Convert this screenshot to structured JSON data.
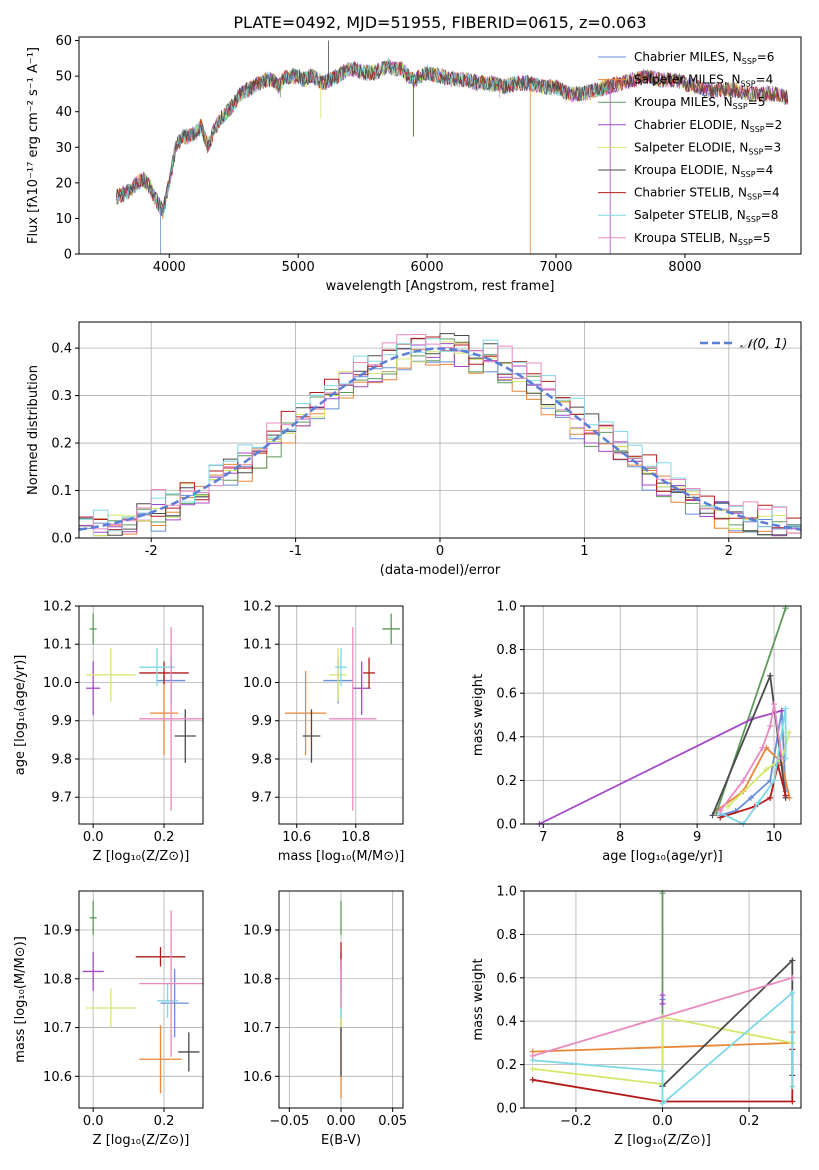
{
  "colors": {
    "palette": [
      "#6a8fd8",
      "#e8873a",
      "#5e9a5e",
      "#a64ac9",
      "#d4e86a",
      "#4a4a4a",
      "#b31b1b",
      "#7fd8e6",
      "#e98ac0"
    ],
    "normal_curve": "#5b7fd6",
    "grid": "#b0b0b0"
  },
  "chart_data": [
    {
      "id": "spectrum",
      "type": "line",
      "title": "PLATE=0492, MJD=51955, FIBERID=0615, z=0.063",
      "xlabel": "wavelength [Angstrom, rest frame]",
      "ylabel": "Flux [fλ10⁻¹⁷ erg cm⁻² s⁻¹ A⁻¹]",
      "xlim": [
        3300,
        8900
      ],
      "ylim": [
        0,
        61
      ],
      "xticks": [
        4000,
        5000,
        6000,
        7000,
        8000
      ],
      "yticks": [
        0,
        10,
        20,
        30,
        40,
        50,
        60
      ],
      "grid": false,
      "legend_position": "top-right",
      "continuum": [
        [
          3590,
          16
        ],
        [
          3650,
          17
        ],
        [
          3700,
          18
        ],
        [
          3750,
          20
        ],
        [
          3800,
          21
        ],
        [
          3850,
          19
        ],
        [
          3900,
          15
        ],
        [
          3950,
          12
        ],
        [
          4000,
          20
        ],
        [
          4050,
          30
        ],
        [
          4100,
          33
        ],
        [
          4150,
          33
        ],
        [
          4200,
          34
        ],
        [
          4250,
          36
        ],
        [
          4300,
          30
        ],
        [
          4350,
          35
        ],
        [
          4400,
          38
        ],
        [
          4450,
          40
        ],
        [
          4500,
          42
        ],
        [
          4550,
          45
        ],
        [
          4600,
          46
        ],
        [
          4650,
          47
        ],
        [
          4700,
          48
        ],
        [
          4750,
          49
        ],
        [
          4800,
          49
        ],
        [
          4850,
          47
        ],
        [
          4900,
          50
        ],
        [
          4950,
          50
        ],
        [
          5000,
          50
        ],
        [
          5050,
          49
        ],
        [
          5100,
          50
        ],
        [
          5150,
          49
        ],
        [
          5200,
          48
        ],
        [
          5250,
          49
        ],
        [
          5300,
          50
        ],
        [
          5350,
          51
        ],
        [
          5400,
          52
        ],
        [
          5450,
          52
        ],
        [
          5500,
          51
        ],
        [
          5550,
          51
        ],
        [
          5600,
          51
        ],
        [
          5650,
          52
        ],
        [
          5700,
          53
        ],
        [
          5750,
          52
        ],
        [
          5800,
          52
        ],
        [
          5850,
          50
        ],
        [
          5900,
          49
        ],
        [
          5950,
          50
        ],
        [
          6000,
          51
        ],
        [
          6100,
          50
        ],
        [
          6200,
          49
        ],
        [
          6300,
          49
        ],
        [
          6400,
          48
        ],
        [
          6500,
          48
        ],
        [
          6600,
          47
        ],
        [
          6700,
          48
        ],
        [
          6800,
          48
        ],
        [
          6900,
          47
        ],
        [
          7000,
          47
        ],
        [
          7100,
          45
        ],
        [
          7200,
          45
        ],
        [
          7300,
          46
        ],
        [
          7400,
          47
        ],
        [
          7500,
          48
        ],
        [
          7600,
          49
        ],
        [
          7700,
          50
        ],
        [
          7800,
          49
        ],
        [
          7900,
          49
        ],
        [
          8000,
          48
        ],
        [
          8100,
          47
        ],
        [
          8200,
          46
        ],
        [
          8300,
          46
        ],
        [
          8400,
          46
        ],
        [
          8500,
          45
        ],
        [
          8600,
          45
        ],
        [
          8700,
          45
        ],
        [
          8800,
          44
        ]
      ],
      "series": [
        {
          "name": "Chabrier MILES, N",
          "sub": "SSP",
          "suffix": "=6"
        },
        {
          "name": "Salpeter MILES, N",
          "sub": "SSP",
          "suffix": "=4"
        },
        {
          "name": "Kroupa MILES, N",
          "sub": "SSP",
          "suffix": "=5"
        },
        {
          "name": "Chabrier ELODIE, N",
          "sub": "SSP",
          "suffix": "=2"
        },
        {
          "name": "Salpeter ELODIE, N",
          "sub": "SSP",
          "suffix": "=3"
        },
        {
          "name": "Kroupa ELODIE, N",
          "sub": "SSP",
          "suffix": "=4"
        },
        {
          "name": "Chabrier STELIB, N",
          "sub": "SSP",
          "suffix": "=4"
        },
        {
          "name": "Salpeter STELIB, N",
          "sub": "SSP",
          "suffix": "=8"
        },
        {
          "name": "Kroupa STELIB, N",
          "sub": "SSP",
          "suffix": "=5"
        }
      ]
    },
    {
      "id": "residuals",
      "type": "bar",
      "xlabel": "(data-model)/error",
      "ylabel": "Normed distribution",
      "xlim": [
        -2.5,
        2.5
      ],
      "ylim": [
        0,
        0.455
      ],
      "xticks": [
        -2,
        -1,
        0,
        1,
        2
      ],
      "yticks": [
        0.0,
        0.1,
        0.2,
        0.3,
        0.4
      ],
      "ytick_labels": [
        "0.0",
        "0.1",
        "0.2",
        "0.3",
        "0.4"
      ],
      "grid": true,
      "legend_position": "top-right",
      "legend": "𝒩(0, 1)",
      "bin_width": 0.1,
      "bins_start": -2.5
    },
    {
      "id": "age_vs_Z",
      "type": "scatter",
      "xlabel": "Z [log₁₀(Z/Z⊙)]",
      "ylabel": "age  [log₁₀(age/yr)]",
      "xlim": [
        -0.04,
        0.31
      ],
      "ylim": [
        9.63,
        10.2
      ],
      "xticks": [
        0.0,
        0.2
      ],
      "xtick_labels": [
        "0.0",
        "0.2"
      ],
      "yticks": [
        9.7,
        9.8,
        9.9,
        10.0,
        10.1,
        10.2
      ],
      "ytick_labels": [
        "9.7",
        "9.8",
        "9.9",
        "10.0",
        "10.1",
        "10.2"
      ],
      "grid": true,
      "points": [
        {
          "x": 0.22,
          "y": 10.005,
          "ex": 0.04,
          "ey": 0.06
        },
        {
          "x": 0.2,
          "y": 9.92,
          "ex": 0.04,
          "ey": 0.11
        },
        {
          "x": 0.0,
          "y": 10.14,
          "ex": 0.01,
          "ey": 0.04
        },
        {
          "x": 0.0,
          "y": 9.985,
          "ex": 0.02,
          "ey": 0.07
        },
        {
          "x": 0.05,
          "y": 10.02,
          "ex": 0.07,
          "ey": 0.07
        },
        {
          "x": 0.26,
          "y": 9.86,
          "ex": 0.03,
          "ey": 0.07
        },
        {
          "x": 0.2,
          "y": 10.025,
          "ex": 0.07,
          "ey": 0.03
        },
        {
          "x": 0.18,
          "y": 10.04,
          "ex": 0.05,
          "ey": 0.05
        },
        {
          "x": 0.22,
          "y": 9.905,
          "ex": 0.09,
          "ey": 0.24
        }
      ]
    },
    {
      "id": "age_vs_mass",
      "type": "scatter",
      "xlabel": "mass [log₁₀(M/M⊙)]",
      "ylabel": "",
      "xlim": [
        10.54,
        10.96
      ],
      "ylim": [
        9.63,
        10.2
      ],
      "xticks": [
        10.6,
        10.8
      ],
      "xtick_labels": [
        "10.6",
        "10.8"
      ],
      "yticks": [
        9.7,
        9.8,
        9.9,
        10.0,
        10.1,
        10.2
      ],
      "ytick_labels": [
        "9.7",
        "9.8",
        "9.9",
        "10.0",
        "10.1",
        "10.2"
      ],
      "grid": true,
      "points": [
        {
          "x": 10.74,
          "y": 10.005,
          "ex": 0.05,
          "ey": 0.06
        },
        {
          "x": 10.63,
          "y": 9.92,
          "ex": 0.07,
          "ey": 0.11
        },
        {
          "x": 10.92,
          "y": 10.14,
          "ex": 0.03,
          "ey": 0.04
        },
        {
          "x": 10.82,
          "y": 9.985,
          "ex": 0.03,
          "ey": 0.07
        },
        {
          "x": 10.74,
          "y": 10.02,
          "ex": 0.03,
          "ey": 0.07
        },
        {
          "x": 10.65,
          "y": 9.86,
          "ex": 0.03,
          "ey": 0.07
        },
        {
          "x": 10.845,
          "y": 10.025,
          "ex": 0.02,
          "ey": 0.04
        },
        {
          "x": 10.75,
          "y": 10.04,
          "ex": 0.02,
          "ey": 0.05
        },
        {
          "x": 10.79,
          "y": 9.905,
          "ex": 0.08,
          "ey": 0.24
        }
      ]
    },
    {
      "id": "mass_weight_vs_age",
      "type": "line",
      "xlabel": "age  [log₁₀(age/yr)]",
      "ylabel": "mass weight",
      "xlim": [
        6.75,
        10.35
      ],
      "ylim": [
        0,
        1.0
      ],
      "xticks": [
        7,
        8,
        9,
        10
      ],
      "yticks": [
        0.0,
        0.2,
        0.4,
        0.6,
        0.8,
        1.0
      ],
      "ytick_labels": [
        "0.0",
        "0.2",
        "0.4",
        "0.6",
        "0.8",
        "1.0"
      ],
      "grid": true,
      "series": [
        {
          "points": [
            [
              9.3,
              0.04
            ],
            [
              9.5,
              0.06
            ],
            [
              9.7,
              0.12
            ],
            [
              9.95,
              0.2
            ],
            [
              10.1,
              0.52
            ],
            [
              10.15,
              0.15
            ]
          ]
        },
        {
          "points": [
            [
              9.25,
              0.06
            ],
            [
              9.6,
              0.15
            ],
            [
              9.9,
              0.35
            ],
            [
              10.1,
              0.28
            ],
            [
              10.2,
              0.12
            ]
          ]
        },
        {
          "points": [
            [
              9.25,
              0.05
            ],
            [
              10.15,
              0.99
            ]
          ]
        },
        {
          "points": [
            [
              6.95,
              0.0
            ],
            [
              9.7,
              0.48
            ],
            [
              10.1,
              0.52
            ]
          ]
        },
        {
          "points": [
            [
              9.4,
              0.08
            ],
            [
              9.9,
              0.25
            ],
            [
              10.1,
              0.3
            ],
            [
              10.2,
              0.42
            ]
          ]
        },
        {
          "points": [
            [
              9.2,
              0.04
            ],
            [
              9.95,
              0.68
            ],
            [
              10.15,
              0.12
            ]
          ]
        },
        {
          "points": [
            [
              9.3,
              0.03
            ],
            [
              9.75,
              0.08
            ],
            [
              9.95,
              0.12
            ],
            [
              10.05,
              0.27
            ],
            [
              10.15,
              0.13
            ]
          ]
        },
        {
          "points": [
            [
              9.3,
              0.05
            ],
            [
              9.6,
              0.0
            ],
            [
              9.8,
              0.1
            ],
            [
              10.0,
              0.2
            ],
            [
              10.15,
              0.53
            ],
            [
              10.15,
              0.3
            ]
          ]
        },
        {
          "points": [
            [
              9.3,
              0.06
            ],
            [
              9.6,
              0.2
            ],
            [
              9.85,
              0.35
            ],
            [
              9.95,
              0.45
            ],
            [
              10.0,
              0.55
            ],
            [
              10.1,
              0.3
            ]
          ]
        }
      ]
    },
    {
      "id": "mass_vs_Z",
      "type": "scatter",
      "xlabel": "Z [log₁₀(Z/Z⊙)]",
      "ylabel": "mass [log₁₀(M/M⊙)]",
      "xlim": [
        -0.04,
        0.31
      ],
      "ylim": [
        10.535,
        10.98
      ],
      "xticks": [
        0.0,
        0.2
      ],
      "xtick_labels": [
        "0.0",
        "0.2"
      ],
      "yticks": [
        10.6,
        10.7,
        10.8,
        10.9
      ],
      "ytick_labels": [
        "10.6",
        "10.7",
        "10.8",
        "10.9"
      ],
      "grid": true,
      "points": [
        {
          "x": 0.23,
          "y": 10.75,
          "ex": 0.04,
          "ey": 0.07
        },
        {
          "x": 0.19,
          "y": 10.635,
          "ex": 0.06,
          "ey": 0.07
        },
        {
          "x": 0.0,
          "y": 10.925,
          "ex": 0.01,
          "ey": 0.035
        },
        {
          "x": 0.0,
          "y": 10.815,
          "ex": 0.03,
          "ey": 0.04
        },
        {
          "x": 0.05,
          "y": 10.74,
          "ex": 0.07,
          "ey": 0.04
        },
        {
          "x": 0.27,
          "y": 10.65,
          "ex": 0.03,
          "ey": 0.04
        },
        {
          "x": 0.19,
          "y": 10.845,
          "ex": 0.07,
          "ey": 0.02
        },
        {
          "x": 0.21,
          "y": 10.755,
          "ex": 0.03,
          "ey": 0.035
        },
        {
          "x": 0.22,
          "y": 10.79,
          "ex": 0.09,
          "ey": 0.15
        }
      ]
    },
    {
      "id": "mass_vs_EBV",
      "type": "scatter",
      "xlabel": "E(B-V)",
      "ylabel": "",
      "xlim": [
        -0.06,
        0.06
      ],
      "ylim": [
        10.535,
        10.98
      ],
      "xticks": [
        -0.05,
        0.0,
        0.05
      ],
      "xtick_labels": [
        "−0.05",
        "0.00",
        "0.05"
      ],
      "yticks": [
        10.6,
        10.7,
        10.8,
        10.9
      ],
      "ytick_labels": [
        "10.6",
        "10.7",
        "10.8",
        "10.9"
      ],
      "grid": true,
      "points": [
        {
          "x": 0.0,
          "y": 10.75,
          "ex": 0.0,
          "ey": 0.06
        },
        {
          "x": 0.0,
          "y": 10.635,
          "ex": 0.0,
          "ey": 0.08
        },
        {
          "x": 0.0,
          "y": 10.925,
          "ex": 0.0,
          "ey": 0.035
        },
        {
          "x": 0.0,
          "y": 10.815,
          "ex": 0.0,
          "ey": 0.04
        },
        {
          "x": 0.0,
          "y": 10.74,
          "ex": 0.0,
          "ey": 0.04
        },
        {
          "x": 0.0,
          "y": 10.65,
          "ex": 0.0,
          "ey": 0.05
        },
        {
          "x": 0.0,
          "y": 10.845,
          "ex": 0.0,
          "ey": 0.03
        },
        {
          "x": 0.0,
          "y": 10.755,
          "ex": 0.0,
          "ey": 0.035
        },
        {
          "x": 0.0,
          "y": 10.79,
          "ex": 0.0,
          "ey": 0.05
        }
      ]
    },
    {
      "id": "mass_weight_vs_Z",
      "type": "line",
      "xlabel": "Z [log₁₀(Z/Z⊙)]",
      "ylabel": "mass weight",
      "xlim": [
        -0.32,
        0.32
      ],
      "ylim": [
        0,
        1.0
      ],
      "xticks": [
        -0.2,
        0.0,
        0.2
      ],
      "xtick_labels": [
        "−0.2",
        "0.0",
        "0.2"
      ],
      "yticks": [
        0.0,
        0.2,
        0.4,
        0.6,
        0.8,
        1.0
      ],
      "ytick_labels": [
        "0.0",
        "0.2",
        "0.4",
        "0.6",
        "0.8",
        "1.0"
      ],
      "grid": true,
      "series": [
        {
          "points": [
            [
              0.0,
              0.5
            ],
            [
              0.0,
              0.48
            ]
          ]
        },
        {
          "points": [
            [
              -0.3,
              0.26
            ],
            [
              0.3,
              0.3
            ],
            [
              0.3,
              0.35
            ]
          ]
        },
        {
          "points": [
            [
              0.0,
              0.99
            ],
            [
              0.0,
              0.1
            ]
          ]
        },
        {
          "points": [
            [
              0.0,
              0.52
            ],
            [
              0.0,
              0.48
            ]
          ]
        },
        {
          "points": [
            [
              -0.3,
              0.18
            ],
            [
              0.0,
              0.11
            ],
            [
              0.0,
              0.42
            ],
            [
              0.3,
              0.3
            ]
          ]
        },
        {
          "points": [
            [
              0.0,
              0.1
            ],
            [
              0.3,
              0.68
            ],
            [
              0.3,
              0.15
            ]
          ]
        },
        {
          "points": [
            [
              -0.3,
              0.13
            ],
            [
              0.0,
              0.03
            ],
            [
              0.3,
              0.03
            ],
            [
              0.3,
              0.27
            ]
          ]
        },
        {
          "points": [
            [
              -0.3,
              0.22
            ],
            [
              0.0,
              0.17
            ],
            [
              0.0,
              0.02
            ],
            [
              0.3,
              0.53
            ],
            [
              0.3,
              0.1
            ]
          ]
        },
        {
          "points": [
            [
              -0.3,
              0.24
            ],
            [
              0.3,
              0.6
            ]
          ]
        }
      ]
    }
  ]
}
